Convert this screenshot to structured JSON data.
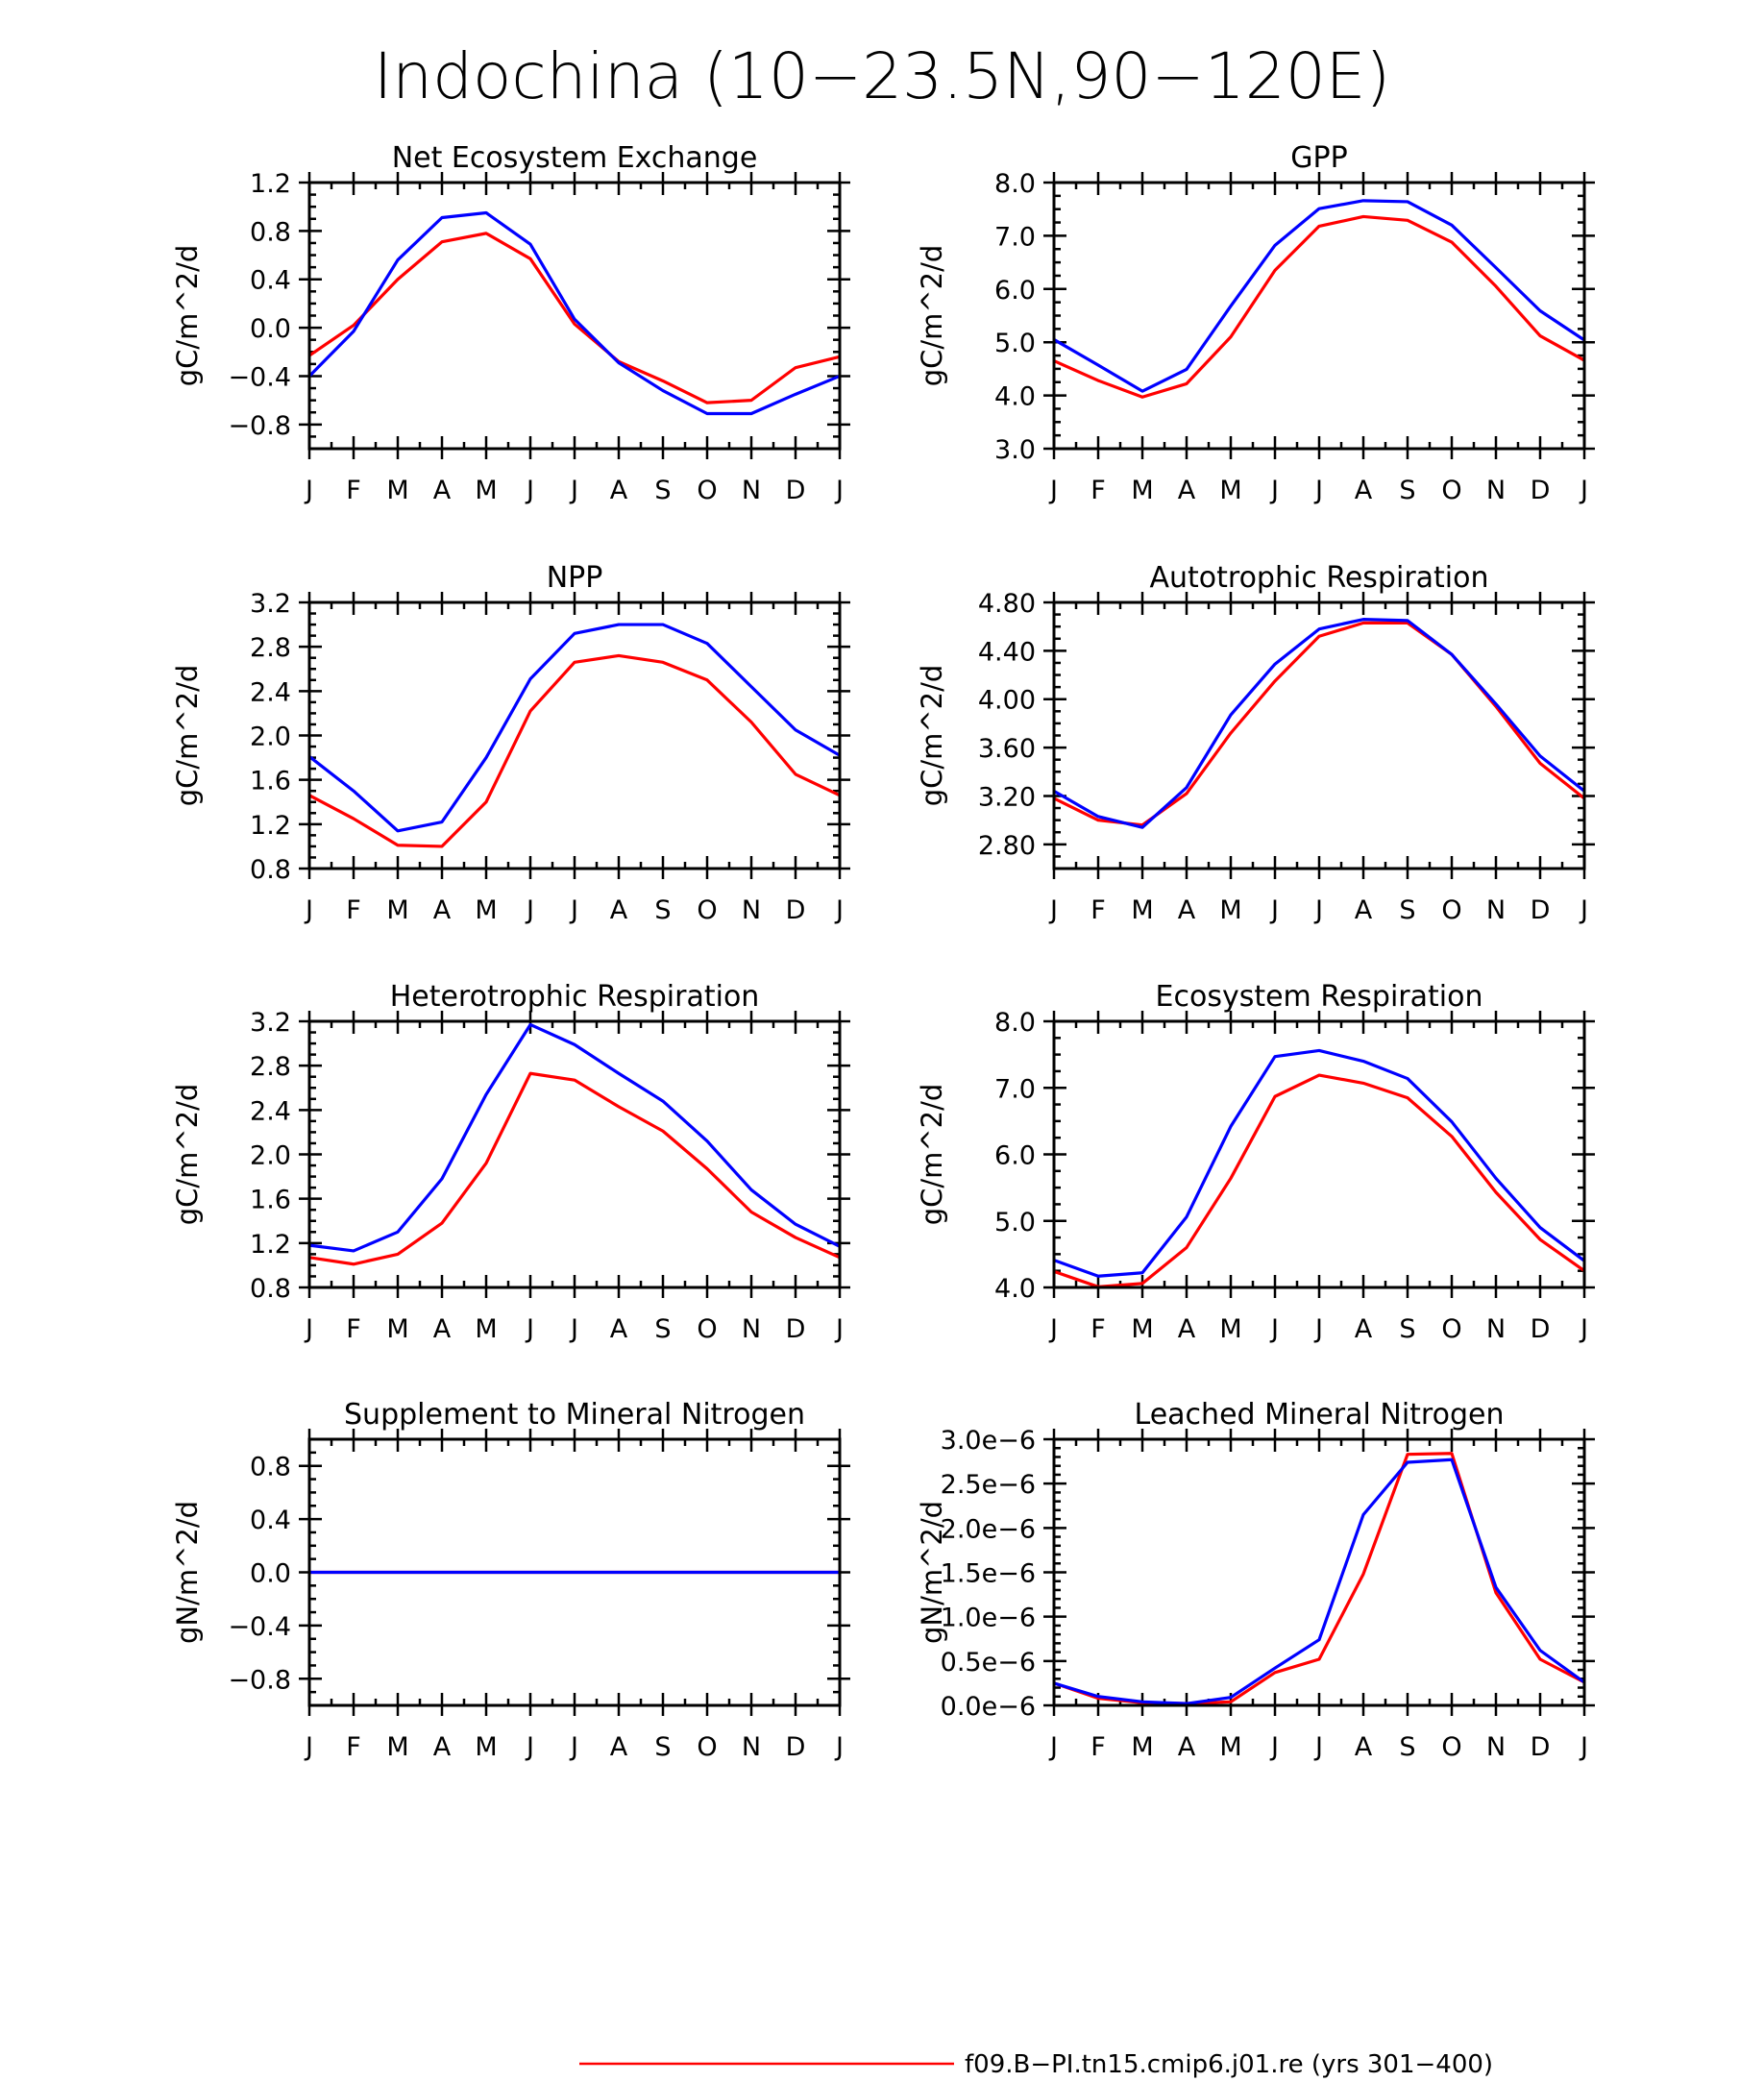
{
  "figure": {
    "title": "Indochina (10−23.5N,90−120E)"
  },
  "legend": [
    {
      "label": "f09.B−PI.tn15.cmip6.j01.re (yrs 301−400)",
      "color": "#ff0000"
    }
  ],
  "chart_data": [
    {
      "type": "line",
      "title": "Net Ecosystem Exchange",
      "ylabel": "gC/m^2/d",
      "categories": [
        "J",
        "F",
        "M",
        "A",
        "M",
        "J",
        "J",
        "A",
        "S",
        "O",
        "N",
        "D",
        "J"
      ],
      "ylim": [
        -1.0,
        1.2
      ],
      "yticks": [
        -0.8,
        -0.4,
        0.0,
        0.4,
        0.8,
        1.2
      ],
      "ytick_labels": [
        "−0.8",
        "−0.4",
        "0.0",
        "0.4",
        "0.8",
        "1.2"
      ],
      "yminor": 0.1,
      "series": [
        {
          "color": "#ff0000",
          "values": [
            -0.23,
            0.02,
            0.4,
            0.71,
            0.78,
            0.57,
            0.03,
            -0.28,
            -0.44,
            -0.62,
            -0.6,
            -0.33,
            -0.24
          ]
        },
        {
          "color": "#0000ff",
          "values": [
            -0.4,
            -0.03,
            0.56,
            0.91,
            0.95,
            0.69,
            0.07,
            -0.29,
            -0.52,
            -0.71,
            -0.71,
            -0.55,
            -0.4
          ]
        }
      ]
    },
    {
      "type": "line",
      "title": "GPP",
      "ylabel": "gC/m^2/d",
      "categories": [
        "J",
        "F",
        "M",
        "A",
        "M",
        "J",
        "J",
        "A",
        "S",
        "O",
        "N",
        "D",
        "J"
      ],
      "ylim": [
        3.0,
        8.0
      ],
      "yticks": [
        3.0,
        4.0,
        5.0,
        6.0,
        7.0,
        8.0
      ],
      "ytick_labels": [
        "3.0",
        "4.0",
        "5.0",
        "6.0",
        "7.0",
        "8.0"
      ],
      "yminor": 0.25,
      "series": [
        {
          "color": "#ff0000",
          "values": [
            4.65,
            4.28,
            3.97,
            4.22,
            5.1,
            6.35,
            7.18,
            7.36,
            7.29,
            6.88,
            6.05,
            5.12,
            4.66
          ]
        },
        {
          "color": "#0000ff",
          "values": [
            5.05,
            4.57,
            4.08,
            4.49,
            5.68,
            6.82,
            7.51,
            7.66,
            7.64,
            7.2,
            6.4,
            5.59,
            5.04
          ]
        }
      ]
    },
    {
      "type": "line",
      "title": "NPP",
      "ylabel": "gC/m^2/d",
      "categories": [
        "J",
        "F",
        "M",
        "A",
        "M",
        "J",
        "J",
        "A",
        "S",
        "O",
        "N",
        "D",
        "J"
      ],
      "ylim": [
        0.8,
        3.2
      ],
      "yticks": [
        0.8,
        1.2,
        1.6,
        2.0,
        2.4,
        2.8,
        3.2
      ],
      "ytick_labels": [
        "0.8",
        "1.2",
        "1.6",
        "2.0",
        "2.4",
        "2.8",
        "3.2"
      ],
      "yminor": 0.1,
      "series": [
        {
          "color": "#ff0000",
          "values": [
            1.46,
            1.25,
            1.01,
            1.0,
            1.4,
            2.22,
            2.66,
            2.72,
            2.66,
            2.5,
            2.12,
            1.65,
            1.46
          ]
        },
        {
          "color": "#0000ff",
          "values": [
            1.81,
            1.5,
            1.14,
            1.22,
            1.8,
            2.51,
            2.92,
            3.0,
            3.0,
            2.83,
            2.44,
            2.05,
            1.82
          ]
        }
      ]
    },
    {
      "type": "line",
      "title": "Autotrophic Respiration",
      "ylabel": "gC/m^2/d",
      "categories": [
        "J",
        "F",
        "M",
        "A",
        "M",
        "J",
        "J",
        "A",
        "S",
        "O",
        "N",
        "D",
        "J"
      ],
      "ylim": [
        2.6,
        4.8
      ],
      "yticks": [
        2.8,
        3.2,
        3.6,
        4.0,
        4.4,
        4.8
      ],
      "ytick_labels": [
        "2.80",
        "3.20",
        "3.60",
        "4.00",
        "4.40",
        "4.80"
      ],
      "yminor": 0.1,
      "series": [
        {
          "color": "#ff0000",
          "values": [
            3.18,
            3.0,
            2.96,
            3.22,
            3.72,
            4.15,
            4.52,
            4.63,
            4.63,
            4.37,
            3.94,
            3.47,
            3.18
          ]
        },
        {
          "color": "#0000ff",
          "values": [
            3.24,
            3.03,
            2.94,
            3.27,
            3.87,
            4.29,
            4.58,
            4.66,
            4.65,
            4.37,
            3.96,
            3.53,
            3.24
          ]
        }
      ]
    },
    {
      "type": "line",
      "title": "Heterotrophic Respiration",
      "ylabel": "gC/m^2/d",
      "categories": [
        "J",
        "F",
        "M",
        "A",
        "M",
        "J",
        "J",
        "A",
        "S",
        "O",
        "N",
        "D",
        "J"
      ],
      "ylim": [
        0.8,
        3.2
      ],
      "yticks": [
        0.8,
        1.2,
        1.6,
        2.0,
        2.4,
        2.8,
        3.2
      ],
      "ytick_labels": [
        "0.8",
        "1.2",
        "1.6",
        "2.0",
        "2.4",
        "2.8",
        "3.2"
      ],
      "yminor": 0.1,
      "series": [
        {
          "color": "#ff0000",
          "values": [
            1.07,
            1.01,
            1.1,
            1.38,
            1.92,
            2.73,
            2.67,
            2.43,
            2.21,
            1.87,
            1.48,
            1.25,
            1.07
          ]
        },
        {
          "color": "#0000ff",
          "values": [
            1.18,
            1.13,
            1.3,
            1.78,
            2.54,
            3.17,
            2.99,
            2.73,
            2.48,
            2.12,
            1.68,
            1.37,
            1.17
          ]
        }
      ]
    },
    {
      "type": "line",
      "title": "Ecosystem Respiration",
      "ylabel": "gC/m^2/d",
      "categories": [
        "J",
        "F",
        "M",
        "A",
        "M",
        "J",
        "J",
        "A",
        "S",
        "O",
        "N",
        "D",
        "J"
      ],
      "ylim": [
        4.0,
        8.0
      ],
      "yticks": [
        4.0,
        5.0,
        6.0,
        7.0,
        8.0
      ],
      "ytick_labels": [
        "4.0",
        "5.0",
        "6.0",
        "7.0",
        "8.0"
      ],
      "yminor": 0.25,
      "series": [
        {
          "color": "#ff0000",
          "values": [
            4.24,
            4.01,
            4.06,
            4.6,
            5.64,
            6.87,
            7.19,
            7.07,
            6.85,
            6.27,
            5.43,
            4.72,
            4.25
          ]
        },
        {
          "color": "#0000ff",
          "values": [
            4.41,
            4.17,
            4.22,
            5.06,
            6.42,
            7.47,
            7.56,
            7.4,
            7.14,
            6.49,
            5.64,
            4.9,
            4.4
          ]
        }
      ]
    },
    {
      "type": "line",
      "title": "Supplement to Mineral Nitrogen",
      "ylabel": "gN/m^2/d",
      "categories": [
        "J",
        "F",
        "M",
        "A",
        "M",
        "J",
        "J",
        "A",
        "S",
        "O",
        "N",
        "D",
        "J"
      ],
      "ylim": [
        -1.0,
        1.0
      ],
      "yticks": [
        -0.8,
        -0.4,
        0.0,
        0.4,
        0.8
      ],
      "ytick_labels": [
        "−0.8",
        "−0.4",
        "0.0",
        "0.4",
        "0.8"
      ],
      "yminor": 0.1,
      "series": [
        {
          "color": "#ff0000",
          "values": [
            0,
            0,
            0,
            0,
            0,
            0,
            0,
            0,
            0,
            0,
            0,
            0,
            0
          ]
        },
        {
          "color": "#0000ff",
          "values": [
            0,
            0,
            0,
            0,
            0,
            0,
            0,
            0,
            0,
            0,
            0,
            0,
            0
          ]
        }
      ]
    },
    {
      "type": "line",
      "title": "Leached Mineral Nitrogen",
      "ylabel": "gN/m^2/d",
      "categories": [
        "J",
        "F",
        "M",
        "A",
        "M",
        "J",
        "J",
        "A",
        "S",
        "O",
        "N",
        "D",
        "J"
      ],
      "ylim": [
        0.0,
        3.0
      ],
      "yticks": [
        0.0,
        0.5,
        1.0,
        1.5,
        2.0,
        2.5,
        3.0
      ],
      "ytick_labels": [
        "0.0e−6",
        "0.5e−6",
        "1.0e−6",
        "1.5e−6",
        "2.0e−6",
        "2.5e−6",
        "3.0e−6"
      ],
      "yminor": 0.1,
      "series": [
        {
          "color": "#ff0000",
          "values": [
            0.25,
            0.08,
            0.03,
            0.02,
            0.04,
            0.37,
            0.52,
            1.48,
            2.83,
            2.84,
            1.27,
            0.52,
            0.26
          ]
        },
        {
          "color": "#0000ff",
          "values": [
            0.25,
            0.1,
            0.04,
            0.02,
            0.09,
            0.42,
            0.74,
            2.15,
            2.74,
            2.77,
            1.33,
            0.62,
            0.26
          ]
        }
      ]
    }
  ]
}
